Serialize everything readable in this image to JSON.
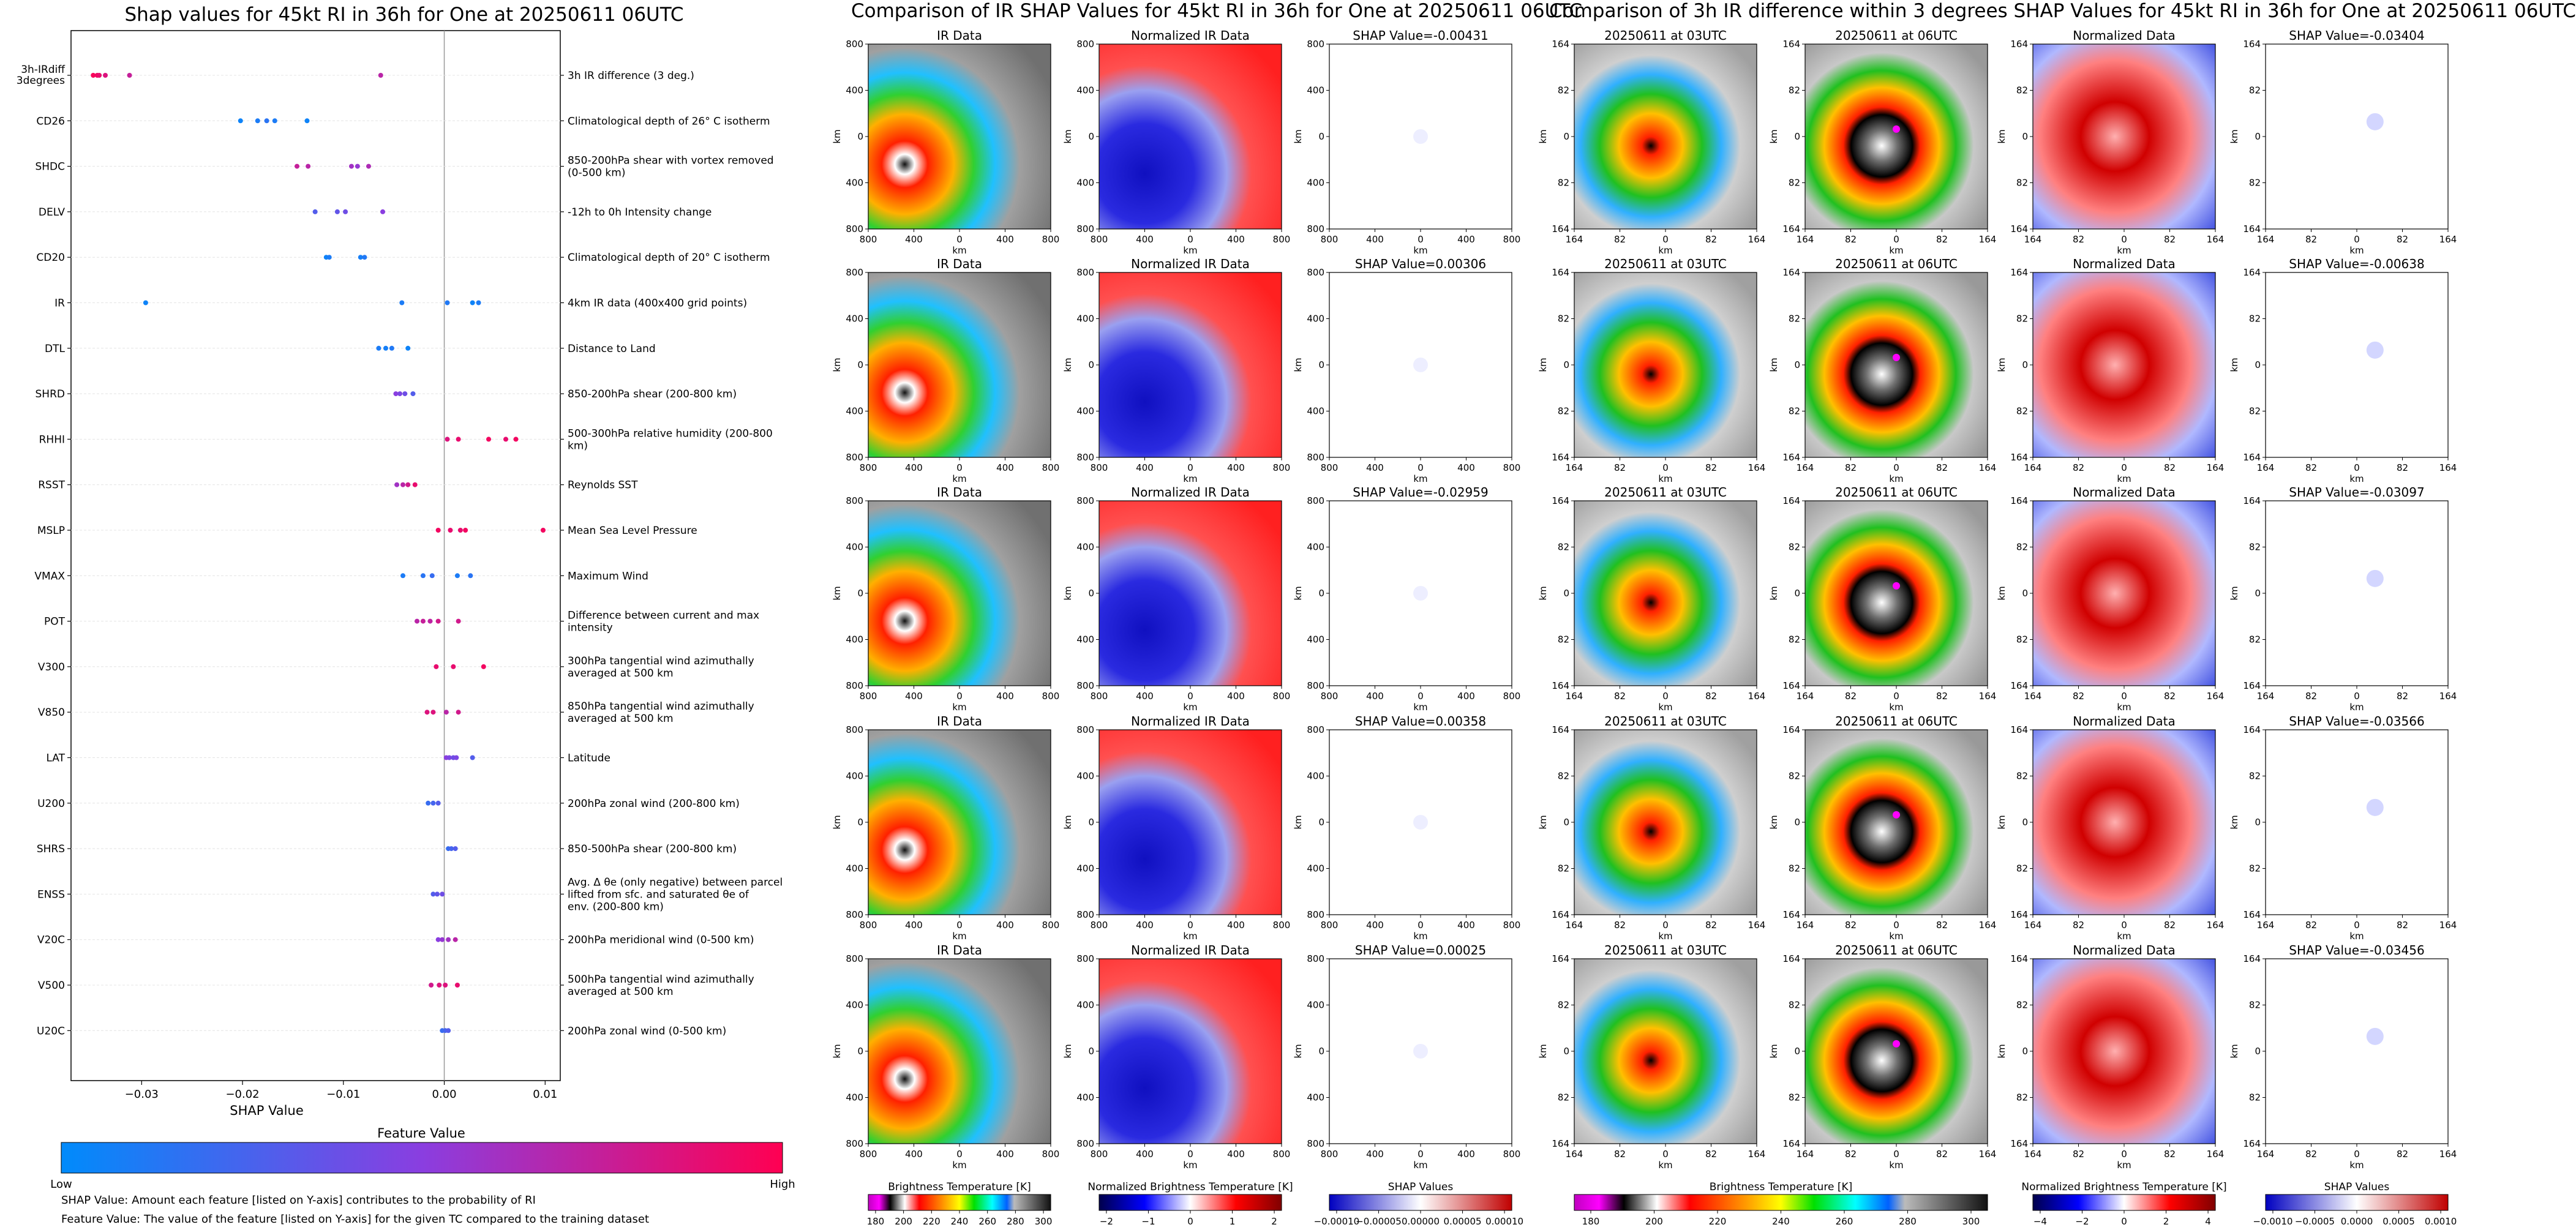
{
  "left_title": "Shap values for 45kt RI in 36h for One at 20250611 06UTC",
  "mid_title": "Comparison of IR SHAP Values for 45kt RI in 36h for One at 20250611 06UTC",
  "right_title": "Comparison of 3h IR difference within 3 degrees SHAP Values for 45kt RI in 36h for One at 20250611 06UTC",
  "chart_data": {
    "type": "scatter",
    "title": "Shap values for 45kt RI in 36h for One at 20250611 06UTC",
    "xlabel": "SHAP Value",
    "ylabel": "",
    "xlim": [
      -0.037,
      0.0115
    ],
    "xticks": [
      -0.03,
      -0.02,
      -0.01,
      0.0,
      0.01
    ],
    "xtick_labels": [
      "−0.03",
      "−0.02",
      "−0.01",
      "0.00",
      "0.01"
    ],
    "zero_line": true,
    "colorbar": {
      "label": "Feature Value",
      "low": "Low",
      "high": "High",
      "low_color": "#008bfb",
      "high_color": "#ff0052"
    },
    "features": [
      {
        "code": "3h-IRdiff 3degrees",
        "desc": "3h IR difference (3 deg.)",
        "points": [
          [
            -0.0348,
            0.97
          ],
          [
            -0.0344,
            0.95
          ],
          [
            -0.0342,
            0.9
          ],
          [
            -0.0336,
            0.85
          ],
          [
            -0.0312,
            0.75
          ],
          [
            -0.0063,
            0.7
          ]
        ]
      },
      {
        "code": "CD26",
        "desc": "Climatological depth of 26° C isotherm",
        "points": [
          [
            -0.0202,
            0.05
          ],
          [
            -0.0185,
            0.1
          ],
          [
            -0.0176,
            0.15
          ],
          [
            -0.0168,
            0.1
          ],
          [
            -0.0136,
            0.05
          ]
        ]
      },
      {
        "code": "SHDC",
        "desc": "850-200hPa shear with vortex removed (0-500 km)",
        "points": [
          [
            -0.0146,
            0.75
          ],
          [
            -0.0135,
            0.7
          ],
          [
            -0.0092,
            0.6
          ],
          [
            -0.0086,
            0.55
          ],
          [
            -0.0075,
            0.65
          ]
        ]
      },
      {
        "code": "DELV",
        "desc": "-12h to 0h Intensity change",
        "points": [
          [
            -0.0128,
            0.3
          ],
          [
            -0.0106,
            0.35
          ],
          [
            -0.0098,
            0.4
          ],
          [
            -0.0061,
            0.5
          ]
        ]
      },
      {
        "code": "CD20",
        "desc": "Climatological depth of 20° C isotherm",
        "points": [
          [
            -0.0117,
            0.05
          ],
          [
            -0.0114,
            0.1
          ],
          [
            -0.0083,
            0.08
          ],
          [
            -0.0079,
            0.12
          ]
        ]
      },
      {
        "code": "IR",
        "desc": "4km IR data (400x400 grid points)",
        "points": [
          [
            -0.0296,
            0.05
          ],
          [
            -0.0042,
            0.1
          ],
          [
            0.0003,
            0.12
          ],
          [
            0.0028,
            0.05
          ],
          [
            0.0034,
            0.1
          ]
        ]
      },
      {
        "code": "DTL",
        "desc": "Distance to Land",
        "points": [
          [
            -0.0065,
            0.1
          ],
          [
            -0.0058,
            0.08
          ],
          [
            -0.0052,
            0.12
          ],
          [
            -0.0036,
            0.05
          ]
        ]
      },
      {
        "code": "SHRD",
        "desc": "850-200hPa shear (200-800 km)",
        "points": [
          [
            -0.0048,
            0.5
          ],
          [
            -0.0044,
            0.45
          ],
          [
            -0.0039,
            0.4
          ],
          [
            -0.0031,
            0.3
          ]
        ]
      },
      {
        "code": "RHHI",
        "desc": "500-300hPa relative humidity (200-800 km)",
        "points": [
          [
            0.0003,
            0.85
          ],
          [
            0.0014,
            0.9
          ],
          [
            0.0044,
            0.95
          ],
          [
            0.0061,
            0.9
          ],
          [
            0.0071,
            0.95
          ]
        ]
      },
      {
        "code": "RSST",
        "desc": "Reynolds SST",
        "points": [
          [
            -0.0047,
            0.6
          ],
          [
            -0.0041,
            0.7
          ],
          [
            -0.0036,
            0.8
          ],
          [
            -0.0029,
            0.9
          ]
        ]
      },
      {
        "code": "MSLP",
        "desc": "Mean Sea Level Pressure",
        "points": [
          [
            -0.0006,
            0.95
          ],
          [
            0.0006,
            0.9
          ],
          [
            0.0016,
            0.9
          ],
          [
            0.0021,
            0.95
          ],
          [
            0.0098,
            0.95
          ]
        ]
      },
      {
        "code": "VMAX",
        "desc": "Maximum Wind",
        "points": [
          [
            -0.0041,
            0.1
          ],
          [
            -0.0021,
            0.15
          ],
          [
            -0.0012,
            0.2
          ],
          [
            0.0013,
            0.1
          ],
          [
            0.0026,
            0.15
          ]
        ]
      },
      {
        "code": "POT",
        "desc": "Difference between current and max intensity",
        "points": [
          [
            -0.0027,
            0.7
          ],
          [
            -0.0021,
            0.75
          ],
          [
            -0.0014,
            0.72
          ],
          [
            -0.0006,
            0.8
          ],
          [
            0.0014,
            0.8
          ]
        ]
      },
      {
        "code": "V300",
        "desc": "300hPa tangential wind azimuthally averaged at 500 km",
        "points": [
          [
            -0.0008,
            0.9
          ],
          [
            0.0009,
            0.9
          ],
          [
            0.0039,
            0.95
          ]
        ]
      },
      {
        "code": "V850",
        "desc": "850hPa tangential wind azimuthally averaged at 500 km",
        "points": [
          [
            -0.0017,
            0.85
          ],
          [
            -0.0011,
            0.85
          ],
          [
            0.0002,
            0.7
          ],
          [
            0.0014,
            0.8
          ]
        ]
      },
      {
        "code": "LAT",
        "desc": "Latitude",
        "points": [
          [
            0.0002,
            0.5
          ],
          [
            0.0005,
            0.45
          ],
          [
            0.0009,
            0.4
          ],
          [
            0.0012,
            0.45
          ],
          [
            0.0028,
            0.3
          ]
        ]
      },
      {
        "code": "U200",
        "desc": "200hPa zonal wind (200-800 km)",
        "points": [
          [
            -0.0016,
            0.2
          ],
          [
            -0.0011,
            0.25
          ],
          [
            -0.0006,
            0.3
          ]
        ]
      },
      {
        "code": "SHRS",
        "desc": "850-500hPa shear (200-800 km)",
        "points": [
          [
            0.0004,
            0.2
          ],
          [
            0.0007,
            0.25
          ],
          [
            0.0011,
            0.3
          ]
        ]
      },
      {
        "code": "ENSS",
        "desc": "Avg. Δ θe (only negative) between parcel lifted from sfc. and saturated θe of env. (200-800 km)",
        "points": [
          [
            -0.0011,
            0.3
          ],
          [
            -0.0007,
            0.35
          ],
          [
            -0.0002,
            0.4
          ]
        ]
      },
      {
        "code": "V20C",
        "desc": "200hPa meridional wind (0-500 km)",
        "points": [
          [
            -0.0006,
            0.5
          ],
          [
            -0.0002,
            0.55
          ],
          [
            0.0004,
            0.6
          ],
          [
            0.0011,
            0.7
          ]
        ]
      },
      {
        "code": "V500",
        "desc": "500hPa tangential wind azimuthally averaged at 500 km",
        "points": [
          [
            -0.0013,
            0.8
          ],
          [
            -0.0005,
            0.85
          ],
          [
            0.0001,
            0.85
          ],
          [
            0.0013,
            0.9
          ]
        ]
      },
      {
        "code": "U20C",
        "desc": "200hPa zonal wind (0-500 km)",
        "points": [
          [
            -0.0002,
            0.2
          ],
          [
            0.0001,
            0.25
          ],
          [
            0.0004,
            0.3
          ]
        ]
      }
    ]
  },
  "footnotes": [
    "SHAP Value: Amount each feature [listed on Y-axis] contributes to the probability of RI",
    "Feature Value: The value of the feature [listed on Y-axis] for the given TC compared to the training dataset"
  ],
  "panels": {
    "ir_titles": [
      "IR Data",
      "IR Data",
      "IR Data",
      "IR Data",
      "IR Data"
    ],
    "norm_titles": [
      "Normalized IR Data",
      "Normalized IR Data",
      "Normalized IR Data",
      "Normalized IR Data",
      "Normalized IR Data"
    ],
    "shap_ir_titles": [
      "SHAP Value=-0.00431",
      "SHAP Value=0.00306",
      "SHAP Value=-0.02959",
      "SHAP Value=0.00358",
      "SHAP Value=0.00025"
    ],
    "t03_title": "20250611 at 03UTC",
    "t06_title": "20250611 at 06UTC",
    "normdata_title": "Normalized Data",
    "shap_diff_titles": [
      "SHAP Value=-0.03404",
      "SHAP Value=-0.00638",
      "SHAP Value=-0.03097",
      "SHAP Value=-0.03566",
      "SHAP Value=-0.03456"
    ],
    "km": "km",
    "ticks_800": [
      "800",
      "400",
      "0",
      "400",
      "800"
    ],
    "ticks_164": [
      "164",
      "82",
      "0",
      "82",
      "164"
    ]
  },
  "colorbars": {
    "bt": {
      "label": "Brightness Temperature [K]",
      "ticks": [
        "180",
        "200",
        "220",
        "240",
        "260",
        "280",
        "300"
      ]
    },
    "nbt": {
      "label": "Normalized Brightness Temperature [K]",
      "ticks": [
        "−2",
        "−1",
        "0",
        "1",
        "2"
      ]
    },
    "shap": {
      "label": "SHAP Values",
      "ticks": [
        "−0.00010",
        "−0.00005",
        "0.00000",
        "0.00005",
        "0.00010"
      ]
    },
    "bt2": {
      "label": "Brightness Temperature [K]",
      "ticks": [
        "180",
        "200",
        "220",
        "240",
        "260",
        "280",
        "300"
      ]
    },
    "nbt2": {
      "label": "Normalized Brightness Temperature [K]",
      "ticks": [
        "−4",
        "−2",
        "0",
        "2",
        "4"
      ]
    },
    "shap2": {
      "label": "SHAP Values",
      "ticks": [
        "−0.0010",
        "−0.0005",
        "0.0000",
        "0.0005",
        "0.0010"
      ]
    }
  },
  "colors": {
    "low": "#008bfb",
    "high": "#ff0052",
    "axis": "#000000",
    "grid": "#dddddd"
  }
}
